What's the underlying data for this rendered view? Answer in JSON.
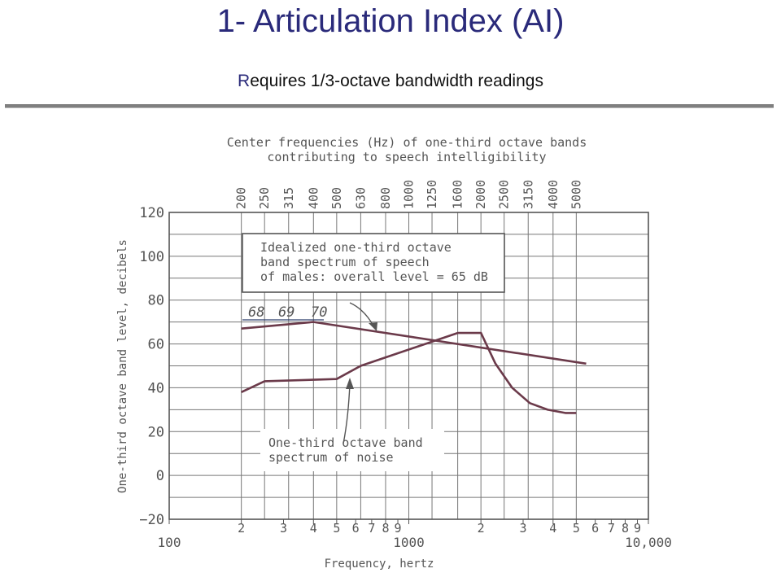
{
  "slide": {
    "title": "1- Articulation Index (AI)",
    "subtitle_first": "R",
    "subtitle_rest": "equires 1/3-octave bandwidth readings",
    "title_color": "#2a2a7a"
  },
  "chart_data": {
    "type": "line",
    "title": "Center frequencies (Hz) of one-third octave bands contributing to speech intelligibility",
    "title_lines": [
      "Center frequencies (Hz) of one-third octave bands",
      "contributing to speech intelligibility"
    ],
    "xlabel": "Frequency, hertz",
    "ylabel": "One-third octave band level, decibels",
    "x_scale": "log",
    "xlim": [
      100,
      10000
    ],
    "ylim": [
      -20,
      120
    ],
    "y_ticks": [
      -20,
      0,
      20,
      40,
      60,
      80,
      100,
      120
    ],
    "band_centers": [
      "200",
      "250",
      "315",
      "400",
      "500",
      "630",
      "800",
      "1000",
      "1250",
      "1600",
      "2000",
      "2500",
      "3150",
      "4000",
      "5000"
    ],
    "bottom_ticks": [
      {
        "value": 100,
        "label": "100"
      },
      {
        "value": 200,
        "label": "2"
      },
      {
        "value": 300,
        "label": "3"
      },
      {
        "value": 400,
        "label": "4"
      },
      {
        "value": 500,
        "label": "5"
      },
      {
        "value": 600,
        "label": "6"
      },
      {
        "value": 700,
        "label": "7"
      },
      {
        "value": 800,
        "label": "8"
      },
      {
        "value": 900,
        "label": "9"
      },
      {
        "value": 1000,
        "label": "1000"
      },
      {
        "value": 2000,
        "label": "2"
      },
      {
        "value": 3000,
        "label": "3"
      },
      {
        "value": 4000,
        "label": "4"
      },
      {
        "value": 5000,
        "label": "5"
      },
      {
        "value": 6000,
        "label": "6"
      },
      {
        "value": 7000,
        "label": "7"
      },
      {
        "value": 8000,
        "label": "8"
      },
      {
        "value": 9000,
        "label": "9"
      },
      {
        "value": 10000,
        "label": "10,000"
      }
    ],
    "series": [
      {
        "x": [
          200,
          400,
          5500
        ],
        "y": [
          67,
          70,
          51
        ],
        "color": "#6b3a4a"
      },
      {
        "x": [
          200,
          250,
          500,
          630,
          1600,
          2000,
          2300,
          2700,
          3200,
          3800,
          4500,
          5000
        ],
        "y": [
          38,
          43,
          44,
          50,
          65,
          65,
          51,
          40,
          33,
          30,
          28.5,
          28.5
        ],
        "color": "#6b3a4a"
      }
    ],
    "annotations": [
      {
        "name": "speech-annotation",
        "lines": [
          "Idealized one-third octave",
          "band spectrum of speech",
          "of males: overall level = 65 dB"
        ]
      },
      {
        "name": "noise-annotation",
        "lines": [
          "One-third octave band",
          "spectrum of noise"
        ]
      }
    ],
    "handwritten_labels": [
      "68",
      "69",
      "70"
    ],
    "grid": true,
    "legend": "none"
  }
}
